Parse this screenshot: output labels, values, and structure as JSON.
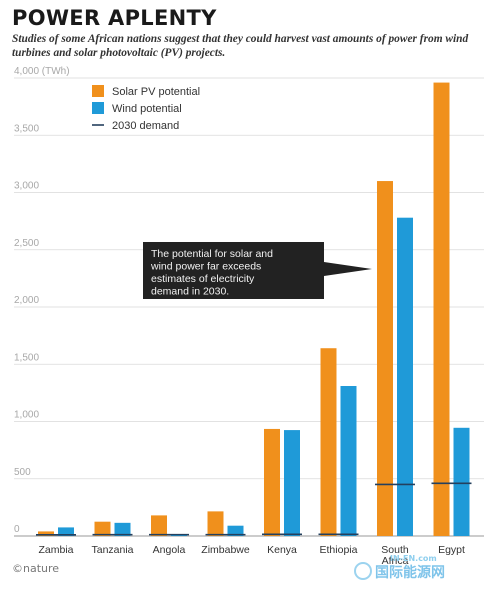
{
  "header": {
    "title": "POWER APLENTY",
    "subtitle": "Studies of some African nations suggest that they could harvest vast amounts of power from wind turbines and solar photovoltaic (PV) projects."
  },
  "annotation": "The potential for solar and wind power far exceeds estimates of electricity demand in 2030.",
  "credit": "©nature",
  "watermark": {
    "main": "国际能源网",
    "small": "IN-EN.com"
  },
  "colors": {
    "solar": "#f0901c",
    "wind": "#1f9ad8",
    "demand": "#24405e",
    "annotation_bg": "#222222"
  },
  "chart_data": {
    "type": "bar",
    "categories": [
      "Zambia",
      "Tanzania",
      "Angola",
      "Zimbabwe",
      "Kenya",
      "Ethiopia",
      "South Africa",
      "Egypt"
    ],
    "category_labels": [
      [
        "Zambia"
      ],
      [
        "Tanzania"
      ],
      [
        "Angola"
      ],
      [
        "Zimbabwe"
      ],
      [
        "Kenya"
      ],
      [
        "Ethiopia"
      ],
      [
        "South",
        "Africa"
      ],
      [
        "Egypt"
      ]
    ],
    "series": [
      {
        "name": "Solar PV potential",
        "values": [
          40,
          125,
          180,
          215,
          935,
          1640,
          3100,
          3960
        ]
      },
      {
        "name": "Wind potential",
        "values": [
          75,
          115,
          10,
          90,
          925,
          1310,
          2780,
          945
        ]
      }
    ],
    "demand": {
      "name": "2030 demand",
      "values": [
        10,
        12,
        12,
        12,
        15,
        15,
        450,
        460
      ]
    },
    "ylabel": "(TWh)",
    "ylim": [
      0,
      4000
    ],
    "yticks": [
      0,
      500,
      1000,
      1500,
      2000,
      2500,
      3000,
      3500,
      4000
    ],
    "ytick_labels": [
      "0",
      "500",
      "1,000",
      "1,500",
      "2,000",
      "2,500",
      "3,000",
      "3,500",
      "4,000"
    ],
    "grid": true,
    "legend": "top-left"
  }
}
